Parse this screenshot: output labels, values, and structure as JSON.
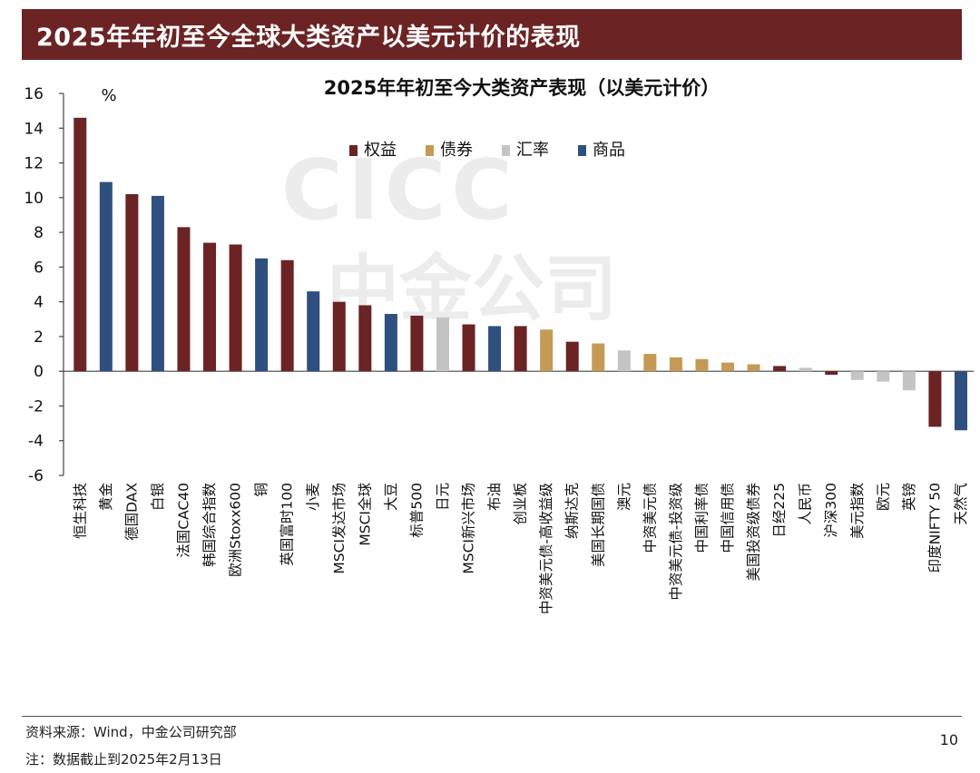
{
  "header": {
    "title": "2025年年初至今全球大类资产以美元计价的表现"
  },
  "footer": {
    "source": "资料来源：Wind，中金公司研究部",
    "note": "注：数据截止到2025年2月13日",
    "page_number": "10"
  },
  "chart_data": {
    "type": "bar",
    "title": "2025年年初至今大类资产表现（以美元计价）",
    "ylabel": "%",
    "ylim": [
      -6,
      16
    ],
    "yticks": [
      -6,
      -4,
      -2,
      0,
      2,
      4,
      6,
      8,
      10,
      12,
      14,
      16
    ],
    "legend_position": "top-center",
    "classes": [
      {
        "name": "权益",
        "color": "#6b2323"
      },
      {
        "name": "债券",
        "color": "#c49a55"
      },
      {
        "name": "汇率",
        "color": "#c4c4c4"
      },
      {
        "name": "商品",
        "color": "#2f4f7f"
      }
    ],
    "categories": [
      "恒生科技",
      "黄金",
      "德国DAX",
      "白银",
      "法国CAC40",
      "韩国综合指数",
      "欧洲Stoxx600",
      "铜",
      "英国富时100",
      "小麦",
      "MSCI发达市场",
      "MSCI全球",
      "大豆",
      "标普500",
      "日元",
      "MSCI新兴市场",
      "布油",
      "创业板",
      "中资美元债-高收益级",
      "纳斯达克",
      "美国长期国债",
      "澳元",
      "中资美元债",
      "中资美元债-投资级",
      "中国利率债",
      "中国信用债",
      "美国投资级债券",
      "日经225",
      "人民币",
      "沪深300",
      "美元指数",
      "欧元",
      "英镑",
      "印度NIFTY 50",
      "天然气"
    ],
    "values": [
      14.6,
      10.9,
      10.2,
      10.1,
      8.3,
      7.4,
      7.3,
      6.5,
      6.4,
      4.6,
      4.0,
      3.8,
      3.3,
      3.2,
      3.1,
      2.7,
      2.6,
      2.6,
      2.4,
      1.7,
      1.6,
      1.2,
      1.0,
      0.8,
      0.7,
      0.5,
      0.4,
      0.3,
      0.2,
      -0.2,
      -0.5,
      -0.6,
      -1.1,
      -3.2,
      -3.4
    ],
    "class_of": [
      "权益",
      "商品",
      "权益",
      "商品",
      "权益",
      "权益",
      "权益",
      "商品",
      "权益",
      "商品",
      "权益",
      "权益",
      "商品",
      "权益",
      "汇率",
      "权益",
      "商品",
      "权益",
      "债券",
      "权益",
      "债券",
      "汇率",
      "债券",
      "债券",
      "债券",
      "债券",
      "债券",
      "权益",
      "汇率",
      "权益",
      "汇率",
      "汇率",
      "汇率",
      "权益",
      "商品"
    ],
    "watermark": "CICC 中金公司"
  }
}
